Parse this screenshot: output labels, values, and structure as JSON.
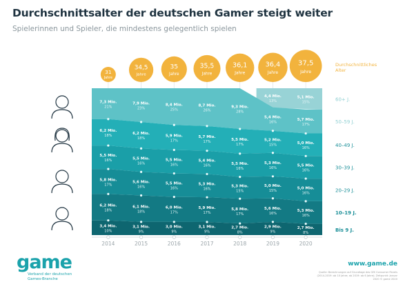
{
  "title": "Durchschnittsalter der deutschen Gamer steigt weiter",
  "subtitle": "Spielerinnen und Spieler, die mindestens gelegentlich spielen",
  "logo": {
    "text": "game",
    "tagline": "Verband der deutschen Games-Branche"
  },
  "url": "www.game.de",
  "source": "Quelle: Berechnungen auf Grundlage des GfK Consumer Panels (2014-2019: ab 10 Jahre; ab 2019: ab 6 Jahre); Zeitpunkt: Januar 2020 © game 2020",
  "colors": {
    "bubble": "#f2b33d",
    "legend_text": "#1aa2ab",
    "age_label": "#f2b33d"
  },
  "chart_data": {
    "type": "stacked-area",
    "categories": [
      "2014",
      "2015",
      "2016",
      "2017",
      "2018",
      "2019",
      "2020"
    ],
    "average_age_label": "Durchschnittliches Alter",
    "average_age": [
      "31",
      "34,5",
      "35",
      "35,5",
      "36,1",
      "36,4",
      "37,5"
    ],
    "average_age_unit": "Jahre",
    "value_unit": "Mio.",
    "series": [
      {
        "name": "Bis 9 J.",
        "color": "#0e6670",
        "values": [
          "3,4",
          "3,1",
          "3,0",
          "3,1",
          "2,7",
          "2,9",
          "2,7"
        ],
        "shares": [
          10,
          9,
          9,
          9,
          8,
          9,
          8
        ]
      },
      {
        "name": "10–19 J.",
        "color": "#137a84",
        "values": [
          "6,2",
          "6,1",
          "6,0",
          "5,9",
          "5,8",
          "5,6",
          "5,3"
        ],
        "shares": [
          18,
          18,
          17,
          17,
          17,
          16,
          16
        ]
      },
      {
        "name": "20–29 J.",
        "color": "#168d97",
        "values": [
          "5,8",
          "5,6",
          "5,5",
          "5,3",
          "5,3",
          "5,0",
          "5,0"
        ],
        "shares": [
          17,
          16,
          16,
          16,
          15,
          15,
          16
        ]
      },
      {
        "name": "30–39 J.",
        "color": "#1a9fa8",
        "values": [
          "5,5",
          "5,5",
          "5,5",
          "5,4",
          "5,5",
          "5,3",
          "5,5"
        ],
        "shares": [
          16,
          16,
          16,
          16,
          16,
          16,
          16
        ]
      },
      {
        "name": "40–49 J.",
        "color": "#23afb7",
        "values": [
          "6,2",
          "6,2",
          "5,9",
          "5,7",
          "5,5",
          "5,2",
          "5,0"
        ],
        "shares": [
          18,
          18,
          17,
          17,
          17,
          15,
          16
        ]
      },
      {
        "name": "50–59 J.",
        "color": "#5ec2c7",
        "values": [
          "7,3",
          "7,9",
          "8,4",
          "8,7",
          "9,3",
          "5,4",
          "5,7"
        ],
        "shares": [
          21,
          23,
          25,
          26,
          28,
          16,
          17
        ]
      },
      {
        "name": "60+ J.",
        "color": "#98d3d6",
        "values": [
          null,
          null,
          null,
          null,
          null,
          "4,4",
          "5,1"
        ],
        "shares": [
          0,
          0,
          0,
          0,
          0,
          13,
          15
        ]
      }
    ]
  }
}
